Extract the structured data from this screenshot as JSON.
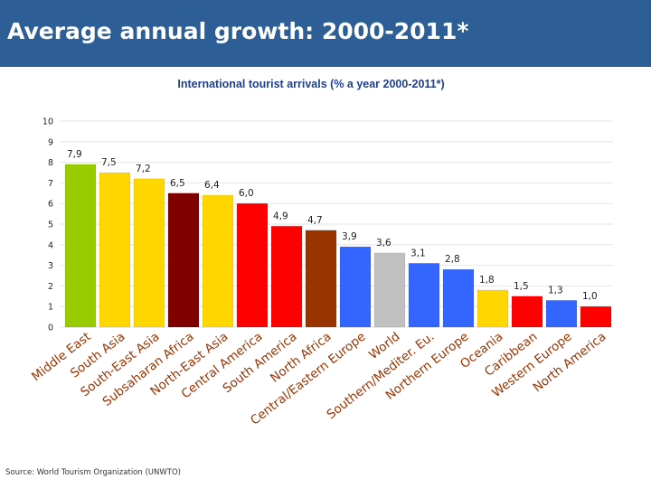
{
  "slide": {
    "title": "Average annual growth: 2000-2011*",
    "source": "Source: World Tourism Organization (UNWTO)"
  },
  "colors": {
    "header": "#2d5f96",
    "gridline": "#e4e4e4"
  },
  "chart_data": {
    "type": "bar",
    "title": "International tourist arrivals  (% a year 2000-2011*)",
    "xlabel": "",
    "ylabel": "",
    "ylim": [
      0,
      10
    ],
    "yticks": [
      "0",
      "1",
      "2",
      "3",
      "4",
      "5",
      "6",
      "7",
      "8",
      "9",
      "10"
    ],
    "grid": true,
    "categories": [
      "Middle East",
      "South Asia",
      "South-East Asia",
      "Subsaharan Africa",
      "North-East Asia",
      "Central America",
      "South America",
      "North Africa",
      "Central/Eastern Europe",
      "World",
      "Southern/Mediter. Eu.",
      "Northern Europe",
      "Oceania",
      "Caribbean",
      "Western Europe",
      "North America"
    ],
    "values": [
      7.9,
      7.5,
      7.2,
      6.5,
      6.4,
      6.0,
      4.9,
      4.7,
      3.9,
      3.6,
      3.1,
      2.8,
      1.8,
      1.5,
      1.3,
      1.0
    ],
    "value_labels": [
      "7,9",
      "7,5",
      "7,2",
      "6,5",
      "6,4",
      "6,0",
      "4,9",
      "4,7",
      "3,9",
      "3,6",
      "3,1",
      "2,8",
      "1,8",
      "1,5",
      "1,3",
      "1,0"
    ],
    "bar_colors": [
      "#99cc00",
      "#ffd700",
      "#ffd700",
      "#800000",
      "#ffd700",
      "#ff0000",
      "#ff0000",
      "#993300",
      "#3366ff",
      "#c0c0c0",
      "#3366ff",
      "#3366ff",
      "#ffd700",
      "#ff0000",
      "#3366ff",
      "#ff0000"
    ],
    "category_label_colors": [
      "#993300",
      "#993300",
      "#993300",
      "#993300",
      "#993300",
      "#993300",
      "#993300",
      "#993300",
      "#993300",
      "#993300",
      "#993300",
      "#993300",
      "#993300",
      "#993300",
      "#993300",
      "#993300"
    ]
  }
}
